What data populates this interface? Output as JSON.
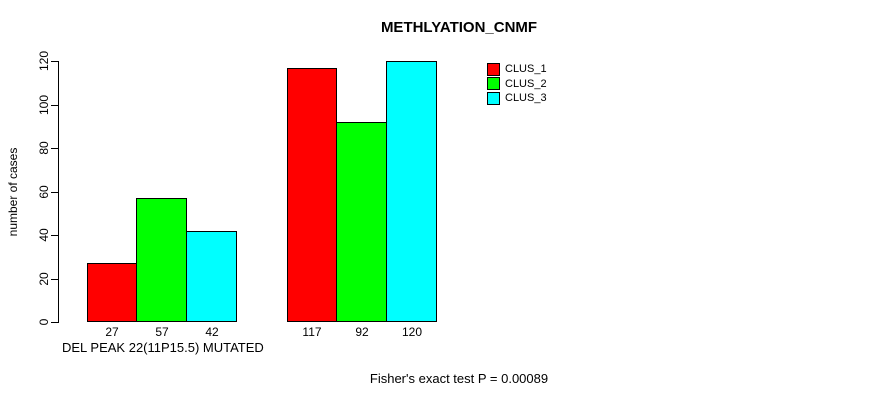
{
  "title": "METHLYATION_CNMF",
  "footer": {
    "note": "Fisher's exact test P = 0.00089"
  },
  "chart_data": {
    "type": "bar",
    "title": "METHLYATION_CNMF",
    "xlabel": "",
    "ylabel": "number of cases",
    "ylim": [
      0,
      120
    ],
    "yticks": [
      0,
      20,
      40,
      60,
      80,
      100,
      120
    ],
    "categories": [
      "DEL PEAK 22(11P15.5) MUTATED",
      ""
    ],
    "series": [
      {
        "name": "CLUS_1",
        "color": "#ff0000",
        "values": [
          27,
          117
        ]
      },
      {
        "name": "CLUS_2",
        "color": "#00ff00",
        "values": [
          57,
          92
        ]
      },
      {
        "name": "CLUS_3",
        "color": "#00ffff",
        "values": [
          42,
          120
        ]
      }
    ],
    "annotation": "Fisher's exact test P = 0.00089",
    "legend_position": "top-right",
    "grid": false,
    "background": "#ffffff"
  }
}
